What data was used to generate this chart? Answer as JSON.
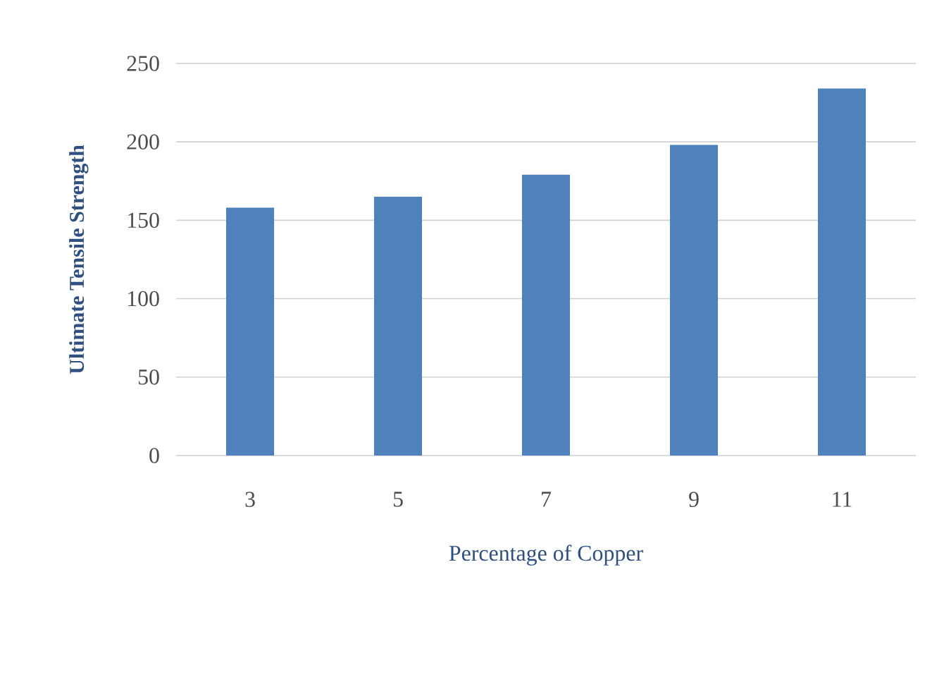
{
  "chart_data": {
    "type": "bar",
    "xlabel": "Percentage of Copper",
    "ylabel": "Ultimate Tensile Strength",
    "categories": [
      "3",
      "5",
      "7",
      "9",
      "11"
    ],
    "values": [
      158,
      165,
      179,
      198,
      234
    ],
    "color": "#4f81bd",
    "ylim": [
      0,
      250
    ],
    "yticks": [
      0,
      50,
      100,
      150,
      200,
      250
    ],
    "grid": "y"
  }
}
